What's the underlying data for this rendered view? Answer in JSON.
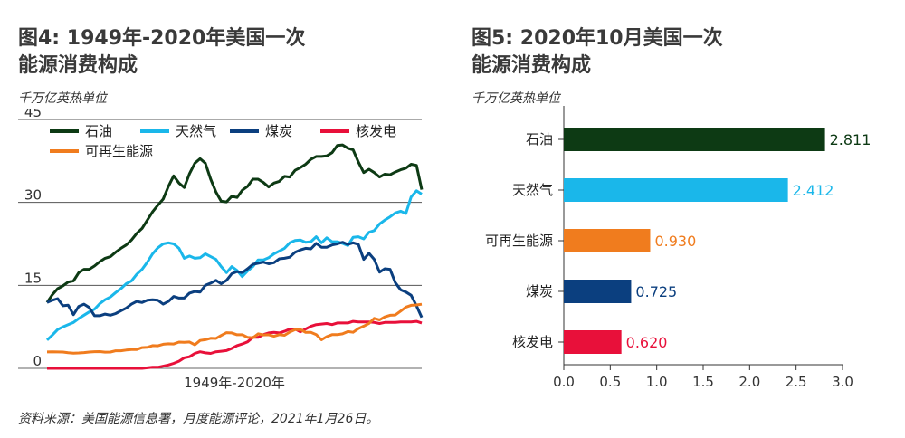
{
  "chart_data": [
    {
      "type": "line",
      "title": "图4: 1949年-2020年美国一次能源消费构成",
      "ylabel": "千万亿英热单位",
      "xlabel": "1949年-2020年",
      "ylim": [
        0,
        45
      ],
      "yticks": [
        "0",
        "15",
        "30",
        "45"
      ],
      "grid": true,
      "legend_position": "top-left",
      "x": [
        1949,
        1950,
        1951,
        1952,
        1953,
        1954,
        1955,
        1956,
        1957,
        1958,
        1959,
        1960,
        1961,
        1962,
        1963,
        1964,
        1965,
        1966,
        1967,
        1968,
        1969,
        1970,
        1971,
        1972,
        1973,
        1974,
        1975,
        1976,
        1977,
        1978,
        1979,
        1980,
        1981,
        1982,
        1983,
        1984,
        1985,
        1986,
        1987,
        1988,
        1989,
        1990,
        1991,
        1992,
        1993,
        1994,
        1995,
        1996,
        1997,
        1998,
        1999,
        2000,
        2001,
        2002,
        2003,
        2004,
        2005,
        2006,
        2007,
        2008,
        2009,
        2010,
        2011,
        2012,
        2013,
        2014,
        2015,
        2016,
        2017,
        2018,
        2019,
        2020
      ],
      "series": [
        {
          "name": "石油",
          "color": "#0d3a14",
          "values": [
            11.9,
            13.3,
            14.4,
            14.9,
            15.6,
            15.8,
            17.3,
            17.9,
            17.9,
            18.5,
            19.3,
            19.9,
            20.2,
            21.0,
            21.7,
            22.3,
            23.2,
            24.4,
            25.3,
            26.8,
            28.3,
            29.5,
            30.6,
            32.9,
            34.8,
            33.5,
            32.7,
            35.2,
            37.1,
            37.9,
            37.1,
            34.2,
            31.9,
            30.2,
            30.1,
            31.1,
            30.9,
            32.2,
            32.9,
            34.2,
            34.2,
            33.6,
            32.8,
            33.5,
            33.8,
            34.7,
            34.6,
            35.8,
            36.3,
            36.9,
            37.8,
            38.3,
            38.3,
            38.4,
            39.0,
            40.3,
            40.4,
            39.8,
            39.5,
            37.3,
            35.4,
            36.0,
            35.4,
            34.6,
            35.1,
            35.0,
            35.5,
            35.9,
            36.2,
            36.9,
            36.7,
            32.3
          ]
        },
        {
          "name": "天然气",
          "color": "#1ab7ea",
          "values": [
            5.1,
            6.0,
            7.0,
            7.5,
            7.9,
            8.3,
            9.0,
            9.6,
            10.2,
            10.7,
            11.7,
            12.4,
            12.9,
            13.7,
            14.4,
            15.3,
            15.8,
            17.0,
            17.9,
            19.2,
            20.7,
            21.8,
            22.5,
            22.7,
            22.5,
            21.7,
            19.9,
            20.3,
            19.9,
            20.0,
            20.7,
            20.2,
            19.7,
            18.4,
            17.3,
            18.4,
            17.7,
            16.6,
            17.6,
            18.4,
            19.6,
            19.6,
            20.0,
            20.7,
            21.2,
            21.7,
            22.7,
            23.1,
            23.2,
            22.8,
            22.9,
            23.8,
            22.7,
            23.6,
            22.9,
            22.9,
            22.6,
            22.2,
            23.7,
            23.8,
            23.4,
            24.6,
            24.9,
            26.1,
            26.8,
            27.4,
            28.1,
            28.4,
            28.0,
            31.0,
            32.1,
            31.5
          ]
        },
        {
          "name": "煤炭",
          "color": "#0b3f7f",
          "values": [
            11.9,
            12.3,
            12.6,
            11.3,
            11.4,
            9.7,
            11.2,
            11.6,
            11.0,
            9.5,
            9.5,
            9.8,
            9.6,
            9.9,
            10.4,
            10.9,
            11.6,
            12.1,
            11.9,
            12.3,
            12.4,
            12.3,
            11.6,
            12.1,
            13.0,
            12.7,
            12.7,
            13.6,
            13.9,
            13.8,
            15.0,
            15.4,
            15.9,
            15.3,
            15.9,
            17.1,
            17.5,
            17.3,
            18.0,
            18.8,
            19.0,
            19.2,
            18.9,
            19.1,
            19.8,
            19.9,
            20.1,
            21.0,
            21.4,
            21.7,
            21.6,
            22.6,
            21.9,
            21.9,
            22.3,
            22.5,
            22.8,
            22.4,
            22.7,
            22.4,
            19.7,
            20.8,
            19.7,
            17.4,
            18.0,
            17.9,
            15.5,
            14.2,
            13.8,
            13.2,
            11.3,
            9.2
          ]
        },
        {
          "name": "核发电",
          "color": "#e8103a",
          "values": [
            0,
            0,
            0,
            0,
            0,
            0,
            0,
            0,
            0,
            0,
            0,
            0,
            0,
            0,
            0,
            0,
            0,
            0,
            0,
            0.1,
            0.2,
            0.2,
            0.4,
            0.6,
            0.9,
            1.3,
            1.9,
            2.1,
            2.7,
            3.0,
            2.8,
            2.7,
            3.0,
            3.1,
            3.2,
            3.6,
            4.1,
            4.4,
            4.8,
            5.6,
            5.6,
            6.1,
            6.4,
            6.5,
            6.4,
            6.7,
            7.1,
            7.1,
            6.6,
            7.1,
            7.6,
            7.9,
            8.0,
            8.1,
            7.9,
            8.2,
            8.2,
            8.2,
            8.5,
            8.4,
            8.4,
            8.4,
            8.3,
            8.1,
            8.3,
            8.3,
            8.3,
            8.4,
            8.4,
            8.4,
            8.5,
            8.2
          ]
        },
        {
          "name": "可再生能源",
          "color": "#f07c1e",
          "values": [
            2.97,
            2.98,
            2.96,
            2.95,
            2.83,
            2.75,
            2.78,
            2.85,
            2.94,
            3.01,
            3.02,
            2.93,
            2.94,
            3.17,
            3.18,
            3.3,
            3.41,
            3.41,
            3.75,
            3.8,
            4.1,
            4.08,
            4.35,
            4.43,
            4.41,
            4.74,
            4.69,
            4.77,
            4.25,
            5.04,
            5.17,
            5.43,
            5.4,
            5.94,
            6.44,
            6.4,
            6.07,
            6.07,
            5.6,
            5.51,
            6.24,
            6.04,
            6.07,
            5.8,
            6.08,
            5.97,
            6.56,
            7.0,
            7.02,
            6.49,
            6.51,
            6.1,
            5.16,
            5.73,
            6.08,
            6.08,
            6.23,
            6.64,
            6.52,
            7.19,
            7.62,
            8.11,
            9.04,
            8.76,
            9.29,
            9.59,
            9.64,
            10.35,
            11.06,
            11.39,
            11.46,
            11.59
          ]
        }
      ]
    },
    {
      "type": "bar",
      "orientation": "horizontal",
      "title": "图5: 2020年10月美国一次能源消费构成",
      "ylabel": "千万亿英热单位",
      "categories": [
        "石油",
        "天然气",
        "可再生能源",
        "煤炭",
        "核发电"
      ],
      "values": [
        2.811,
        2.412,
        0.93,
        0.725,
        0.62
      ],
      "value_labels": [
        "2.811",
        "2.412",
        "0.930",
        "0.725",
        "0.620"
      ],
      "colors": [
        "#0d3a14",
        "#1ab7ea",
        "#f07c1e",
        "#0b3f7f",
        "#e8103a"
      ],
      "label_colors": [
        "#0d3a14",
        "#1ab7ea",
        "#f07c1e",
        "#0b3f7f",
        "#e8103a"
      ],
      "xlim": [
        0,
        3.0
      ],
      "xticks": [
        "0.0",
        "0.5",
        "1.0",
        "1.5",
        "2.0",
        "2.5",
        "3.0"
      ],
      "grid": false
    }
  ],
  "source": "资料来源：美国能源信息署，月度能源评论，2021年1月26日。"
}
